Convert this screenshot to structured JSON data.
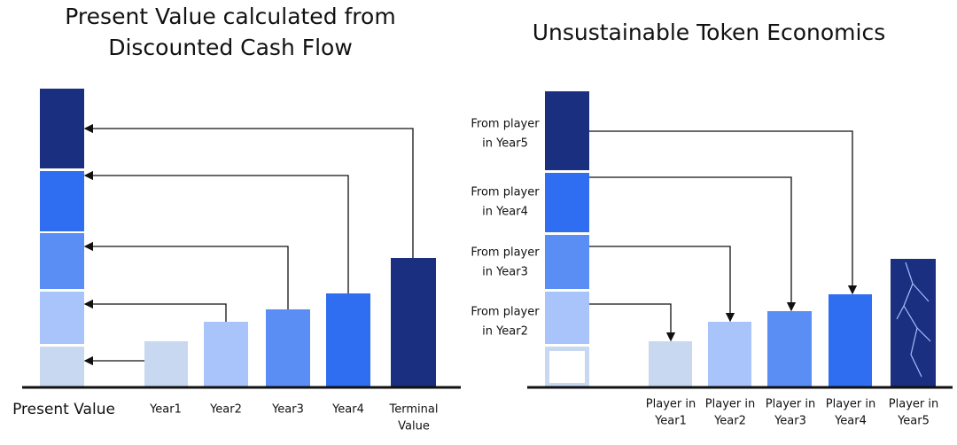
{
  "left": {
    "title": [
      "Present Value calculated from",
      "Discounted Cash Flow"
    ],
    "labels": [
      [
        "Present Value"
      ],
      [
        "Year1"
      ],
      [
        "Year2"
      ],
      [
        "Year3"
      ],
      [
        "Year4"
      ],
      [
        "Terminal",
        "Value"
      ]
    ]
  },
  "right": {
    "title": [
      "Unsustainable Token Economics"
    ],
    "side_labels": [
      [
        "From player",
        "in Year5"
      ],
      [
        "From player",
        "in Year4"
      ],
      [
        "From player",
        "in Year3"
      ],
      [
        "From player",
        "in Year2"
      ]
    ],
    "labels": [
      [
        "Player in",
        "Year1"
      ],
      [
        "Player in",
        "Year2"
      ],
      [
        "Player in",
        "Year3"
      ],
      [
        "Player in",
        "Year4"
      ],
      [
        "Player in",
        "Year5"
      ]
    ]
  }
}
